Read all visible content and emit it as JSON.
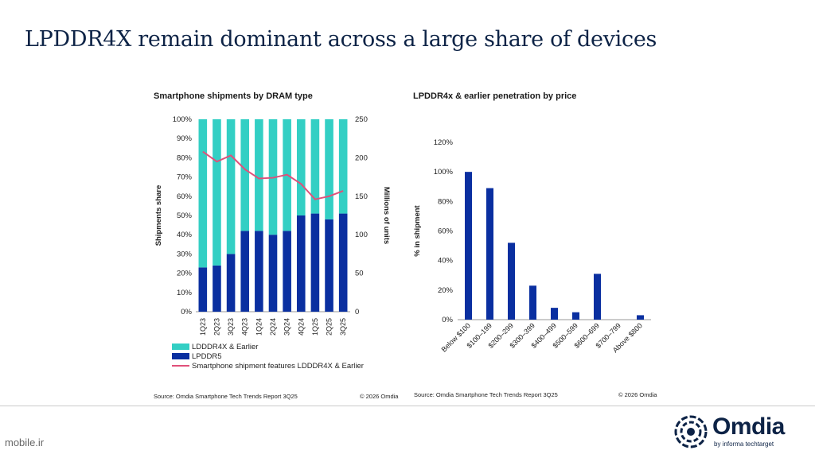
{
  "slide": {
    "title": "LPDDR4X remain dominant across a large share of devices",
    "watermark": "mobile.ir",
    "logo_name": "Omdia",
    "logo_sub": "by informa techtarget"
  },
  "colors": {
    "teal": "#33cfc4",
    "navy": "#0a2fa0",
    "pink": "#e0507a",
    "title_navy": "#0d2346"
  },
  "chart_data": [
    {
      "type": "bar",
      "stacked": true,
      "title": "Smartphone shipments by DRAM type",
      "ylabel": "Shipments share",
      "y2label": "Millions of units",
      "categories": [
        "1Q23",
        "2Q23",
        "3Q23",
        "4Q23",
        "1Q24",
        "2Q24",
        "3Q24",
        "4Q24",
        "1Q25",
        "2Q25",
        "3Q25"
      ],
      "series": [
        {
          "name": "LDDDR4X & Earlier",
          "type": "bar",
          "values": [
            77,
            76,
            70,
            58,
            58,
            60,
            58,
            50,
            49,
            52,
            49
          ]
        },
        {
          "name": "LPDDR5",
          "type": "bar",
          "values": [
            23,
            24,
            30,
            42,
            42,
            40,
            42,
            50,
            51,
            48,
            51
          ]
        },
        {
          "name": "Smartphone shipment features LDDDR4X & Earlier",
          "type": "line",
          "axis": "right",
          "values": [
            208,
            195,
            203,
            185,
            173,
            174,
            178,
            166,
            146,
            150,
            157
          ]
        }
      ],
      "ylim": [
        0,
        100
      ],
      "y2lim": [
        0,
        250
      ],
      "yticks": [
        "0%",
        "10%",
        "20%",
        "30%",
        "40%",
        "50%",
        "60%",
        "70%",
        "80%",
        "90%",
        "100%"
      ],
      "y2ticks": [
        "0",
        "50",
        "100",
        "150",
        "200",
        "250"
      ],
      "legend_position": "bottom",
      "source": "Source: Omdia Smartphone Tech Trends Report 3Q25",
      "copyright": "© 2026 Omdia"
    },
    {
      "type": "bar",
      "title": "LPDDR4x & earlier penetration by price",
      "ylabel": "% in shipment",
      "categories": [
        "Below $100",
        "$100–199",
        "$200–299",
        "$300–399",
        "$400–499",
        "$500–599",
        "$600–699",
        "$700–799",
        "Above $800"
      ],
      "values": [
        100,
        89,
        52,
        23,
        8,
        5,
        31,
        0,
        3
      ],
      "ylim": [
        0,
        120
      ],
      "yticks": [
        "0%",
        "20%",
        "40%",
        "60%",
        "80%",
        "100%",
        "120%"
      ],
      "source": "Source: Omdia Smartphone Tech Trends Report 3Q25",
      "copyright": "© 2026 Omdia"
    }
  ]
}
